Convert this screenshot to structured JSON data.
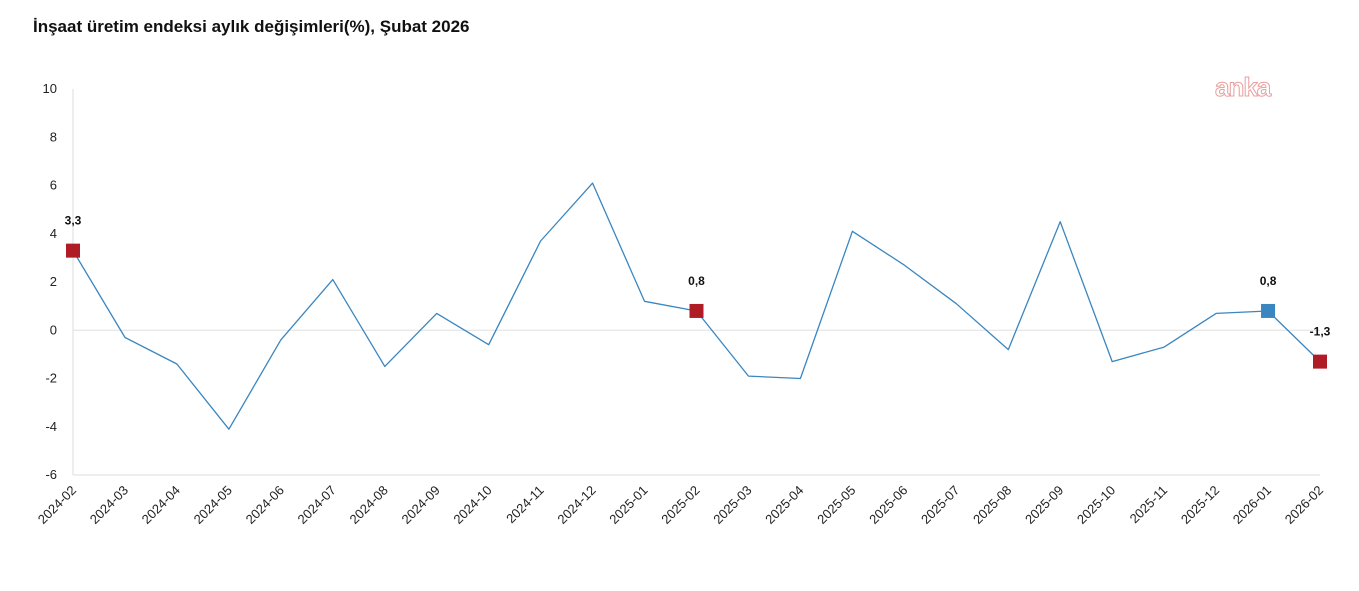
{
  "brand": {
    "logo_text": "anka"
  },
  "chart_data": {
    "type": "line",
    "title": "İnşaat üretim endeksi aylık değişimleri(%), Şubat 2026",
    "xlabel": "",
    "ylabel": "",
    "ylim": [
      -6,
      10
    ],
    "yticks": [
      10,
      8,
      6,
      4,
      2,
      0,
      -2,
      -4,
      -6
    ],
    "grid": false,
    "categories": [
      "2024-02",
      "2024-03",
      "2024-04",
      "2024-05",
      "2024-06",
      "2024-07",
      "2024-08",
      "2024-09",
      "2024-10",
      "2024-11",
      "2024-12",
      "2025-01",
      "2025-02",
      "2025-03",
      "2025-04",
      "2025-05",
      "2025-06",
      "2025-07",
      "2025-08",
      "2025-09",
      "2025-10",
      "2025-11",
      "2025-12",
      "2026-01",
      "2026-02"
    ],
    "series": [
      {
        "values": [
          3.3,
          -0.3,
          -1.4,
          -4.1,
          -0.4,
          2.1,
          -1.5,
          0.7,
          -0.6,
          3.7,
          6.1,
          1.2,
          0.8,
          -1.9,
          -2.0,
          4.1,
          2.7,
          1.1,
          -0.8,
          4.5,
          -1.3,
          -0.7,
          0.7,
          0.8,
          -1.3
        ],
        "color": "#3a86c0"
      }
    ],
    "highlights": [
      {
        "category": "2024-02",
        "value": 3.3,
        "label": "3,3",
        "color": "#b01c26"
      },
      {
        "category": "2025-02",
        "value": 0.8,
        "label": "0,8",
        "color": "#b01c26"
      },
      {
        "category": "2026-01",
        "value": 0.8,
        "label": "0,8",
        "color": "#3a86c0"
      },
      {
        "category": "2026-02",
        "value": -1.3,
        "label": "-1,3",
        "color": "#b01c26"
      }
    ],
    "colors": {
      "line": "#3a86c0",
      "highlight_red": "#b01c26",
      "highlight_blue": "#3a86c0",
      "zero_line": "#e0e0e0"
    }
  }
}
